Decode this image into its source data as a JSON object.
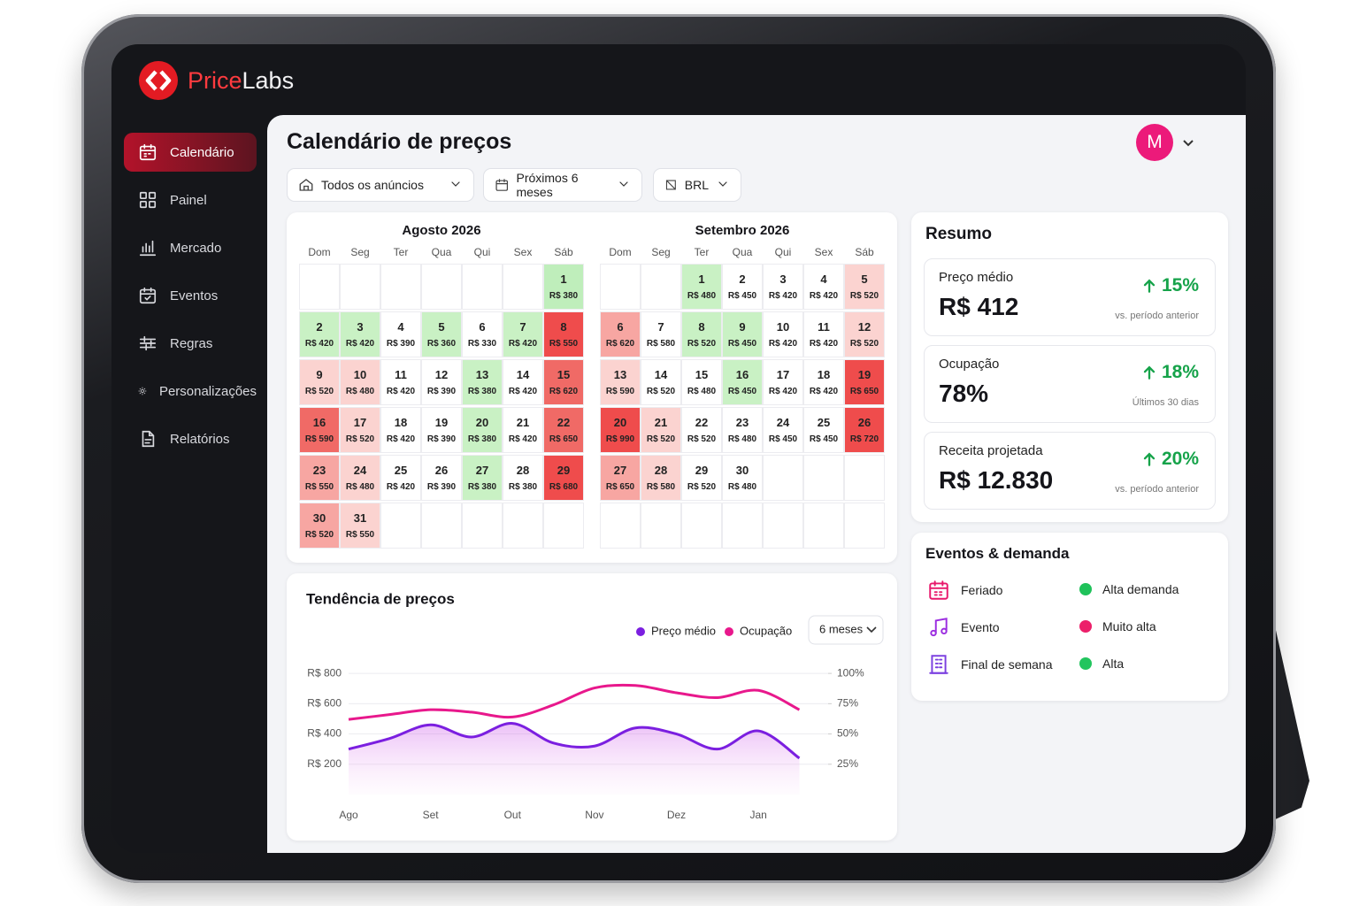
{
  "brand": {
    "prefix": "Price",
    "suffix": "Labs"
  },
  "header": {
    "avatar": "M"
  },
  "nav": {
    "items": [
      "Calendário",
      "Painel",
      "Mercado",
      "Eventos",
      "Regras",
      "Personalizações",
      "Relatórios"
    ],
    "active": 0
  },
  "page": {
    "title": "Calendário de preços",
    "filters": [
      "Todos os anúncios",
      "Próximos 6 meses",
      "BRL"
    ]
  },
  "calendar": {
    "weekdays": [
      "Dom",
      "Seg",
      "Ter",
      "Qua",
      "Qui",
      "Sex",
      "Sáb"
    ],
    "months": [
      {
        "title": "Agosto 2026",
        "cells": [
          null,
          null,
          null,
          null,
          null,
          null,
          {
            "day": 1,
            "price": "R$ 380",
            "color": "#bfeebb"
          },
          {
            "day": 2,
            "price": "R$ 420",
            "color": "#c9f1c4"
          },
          {
            "day": 3,
            "price": "R$ 420",
            "color": "#c9f1c4"
          },
          {
            "day": 4,
            "price": "R$ 390",
            "color": "#ffffff"
          },
          {
            "day": 5,
            "price": "R$ 360",
            "color": "#c9f1c4"
          },
          {
            "day": 6,
            "price": "R$ 330",
            "color": "#ffffff"
          },
          {
            "day": 7,
            "price": "R$ 420",
            "color": "#c9f1c4"
          },
          {
            "day": 8,
            "price": "R$ 550",
            "color": "#ef4c4c"
          },
          {
            "day": 9,
            "price": "R$ 520",
            "color": "#fbd3d0"
          },
          {
            "day": 10,
            "price": "R$ 480",
            "color": "#fbd3d0"
          },
          {
            "day": 11,
            "price": "R$ 420",
            "color": "#ffffff"
          },
          {
            "day": 12,
            "price": "R$ 390",
            "color": "#ffffff"
          },
          {
            "day": 13,
            "price": "R$ 380",
            "color": "#c9f1c4"
          },
          {
            "day": 14,
            "price": "R$ 420",
            "color": "#ffffff"
          },
          {
            "day": 15,
            "price": "R$ 620",
            "color": "#f06a66"
          },
          {
            "day": 16,
            "price": "R$ 590",
            "color": "#f06a66"
          },
          {
            "day": 17,
            "price": "R$ 520",
            "color": "#fbd3d0"
          },
          {
            "day": 18,
            "price": "R$ 420",
            "color": "#ffffff"
          },
          {
            "day": 19,
            "price": "R$ 390",
            "color": "#ffffff"
          },
          {
            "day": 20,
            "price": "R$ 380",
            "color": "#c9f1c4"
          },
          {
            "day": 21,
            "price": "R$ 420",
            "color": "#ffffff"
          },
          {
            "day": 22,
            "price": "R$ 650",
            "color": "#f06a66"
          },
          {
            "day": 23,
            "price": "R$ 550",
            "color": "#f7a6a2"
          },
          {
            "day": 24,
            "price": "R$ 480",
            "color": "#fbd3d0"
          },
          {
            "day": 25,
            "price": "R$ 420",
            "color": "#ffffff"
          },
          {
            "day": 26,
            "price": "R$ 390",
            "color": "#ffffff"
          },
          {
            "day": 27,
            "price": "R$ 380",
            "color": "#c9f1c4"
          },
          {
            "day": 28,
            "price": "R$ 380",
            "color": "#ffffff"
          },
          {
            "day": 29,
            "price": "R$ 680",
            "color": "#ef4c4c"
          },
          {
            "day": 30,
            "price": "R$ 520",
            "color": "#f7a6a2"
          },
          {
            "day": 31,
            "price": "R$ 550",
            "color": "#fbd3d0"
          }
        ]
      },
      {
        "title": "Setembro 2026",
        "cells": [
          null,
          null,
          {
            "day": 1,
            "price": "R$ 480",
            "color": "#c9f1c4"
          },
          {
            "day": 2,
            "price": "R$ 450",
            "color": "#ffffff"
          },
          {
            "day": 3,
            "price": "R$ 420",
            "color": "#ffffff"
          },
          {
            "day": 4,
            "price": "R$ 420",
            "color": "#ffffff"
          },
          {
            "day": 5,
            "price": "R$ 520",
            "color": "#fbd3d0"
          },
          {
            "day": 6,
            "price": "R$ 620",
            "color": "#f7a6a2"
          },
          {
            "day": 7,
            "price": "R$ 580",
            "color": "#ffffff"
          },
          {
            "day": 8,
            "price": "R$ 520",
            "color": "#c9f1c4"
          },
          {
            "day": 9,
            "price": "R$ 450",
            "color": "#c9f1c4"
          },
          {
            "day": 10,
            "price": "R$ 420",
            "color": "#ffffff"
          },
          {
            "day": 11,
            "price": "R$ 420",
            "color": "#ffffff"
          },
          {
            "day": 12,
            "price": "R$ 520",
            "color": "#fbd3d0"
          },
          {
            "day": 13,
            "price": "R$ 590",
            "color": "#fbd3d0"
          },
          {
            "day": 14,
            "price": "R$ 520",
            "color": "#ffffff"
          },
          {
            "day": 15,
            "price": "R$ 480",
            "color": "#ffffff"
          },
          {
            "day": 16,
            "price": "R$ 450",
            "color": "#c9f1c4"
          },
          {
            "day": 17,
            "price": "R$ 420",
            "color": "#ffffff"
          },
          {
            "day": 18,
            "price": "R$ 420",
            "color": "#ffffff"
          },
          {
            "day": 19,
            "price": "R$ 650",
            "color": "#ef4c4c"
          },
          {
            "day": 20,
            "price": "R$ 990",
            "color": "#ef4c4c"
          },
          {
            "day": 21,
            "price": "R$ 520",
            "color": "#fbd3d0"
          },
          {
            "day": 22,
            "price": "R$ 520",
            "color": "#ffffff"
          },
          {
            "day": 23,
            "price": "R$ 480",
            "color": "#ffffff"
          },
          {
            "day": 24,
            "price": "R$ 450",
            "color": "#ffffff"
          },
          {
            "day": 25,
            "price": "R$ 450",
            "color": "#ffffff"
          },
          {
            "day": 26,
            "price": "R$ 720",
            "color": "#ef4c4c"
          },
          {
            "day": 27,
            "price": "R$ 650",
            "color": "#f7a6a2"
          },
          {
            "day": 28,
            "price": "R$ 580",
            "color": "#fbd3d0"
          },
          {
            "day": 29,
            "price": "R$ 520",
            "color": "#ffffff"
          },
          {
            "day": 30,
            "price": "R$ 480",
            "color": "#ffffff"
          }
        ]
      }
    ]
  },
  "summary": {
    "title": "Resumo",
    "cards": [
      {
        "label": "Preço médio",
        "value": "R$ 412",
        "change": "15%",
        "note": "vs. período anterior"
      },
      {
        "label": "Ocupação",
        "value": "78%",
        "change": "18%",
        "note": "Últimos 30 dias"
      },
      {
        "label": "Receita projetada",
        "value": "R$ 12.830",
        "change": "20%",
        "note": "vs. período anterior"
      }
    ]
  },
  "events": {
    "title": "Eventos & demanda",
    "items": [
      "Feriado",
      "Evento",
      "Final de semana"
    ],
    "legend": [
      {
        "label": "Alta demanda",
        "color": "#1fc25a"
      },
      {
        "label": "Muito alta",
        "color": "#ec1f6a"
      },
      {
        "label": "Alta",
        "color": "#22c55e"
      }
    ]
  },
  "chart_data": {
    "type": "line",
    "title": "Tendência de preços",
    "range": "6 meses",
    "categories": [
      "Ago",
      null,
      "Set",
      null,
      "Out",
      null,
      "Nov",
      null,
      "Dez",
      null,
      "Jan",
      null
    ],
    "series": [
      {
        "name": "Preço médio",
        "color": "#7b1fe0",
        "values": [
          300,
          370,
          460,
          380,
          470,
          340,
          320,
          440,
          400,
          300,
          420,
          240
        ]
      },
      {
        "name": "Ocupação",
        "color": "#e8188c",
        "axis": "y2",
        "values": [
          62,
          66,
          70,
          68,
          64,
          74,
          88,
          90,
          84,
          80,
          86,
          70
        ]
      }
    ],
    "ylim": [
      0,
      900
    ],
    "yticks": [
      {
        "value": 200,
        "label": "R$ 200"
      },
      {
        "value": 400,
        "label": "R$ 400"
      },
      {
        "value": 600,
        "label": "R$ 600"
      },
      {
        "value": 800,
        "label": "R$ 800"
      }
    ],
    "y2lim": [
      0,
      112.5
    ],
    "y2ticks": [
      {
        "value": 25,
        "label": "25%"
      },
      {
        "value": 50,
        "label": "50%"
      },
      {
        "value": 75,
        "label": "75%"
      },
      {
        "value": 100,
        "label": "100%"
      }
    ],
    "grid": true
  }
}
